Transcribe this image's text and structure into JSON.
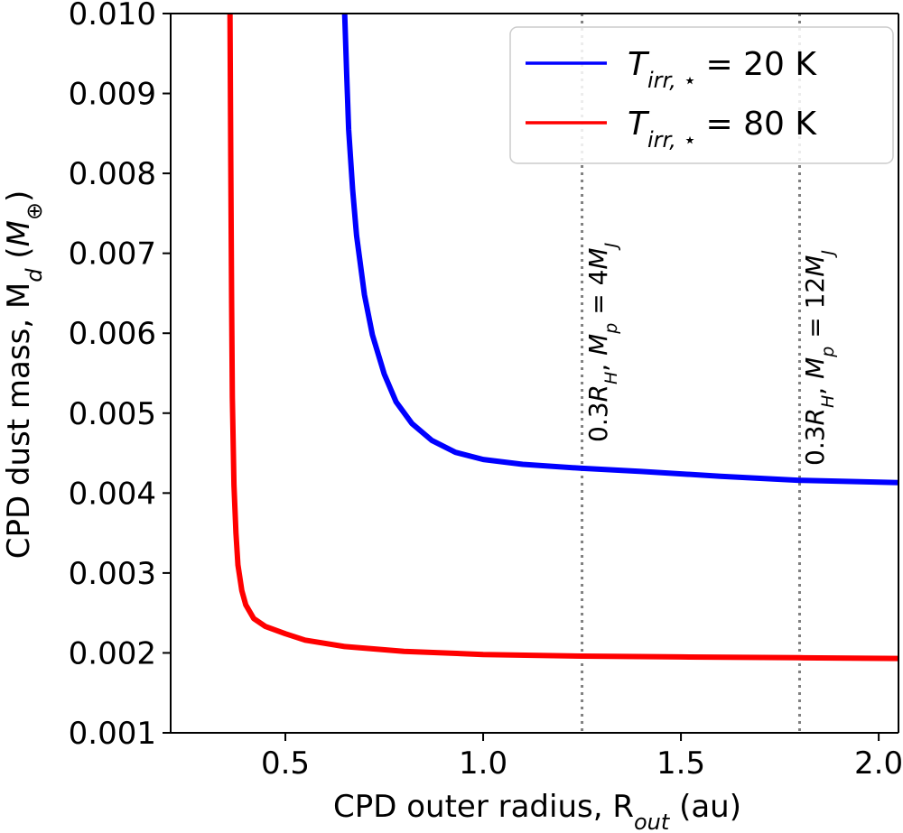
{
  "chart_data": {
    "type": "line",
    "xlabel": "CPD outer radius, R",
    "xlabel_sub": "out",
    "xlabel_unit": " (au)",
    "ylabel": "CPD dust mass, M",
    "ylabel_sub": "d",
    "ylabel_unit_open": " (",
    "ylabel_unit_M": "M",
    "ylabel_unit_sub": "⊕",
    "ylabel_unit_close": ")",
    "xlim": [
      0.21,
      2.05
    ],
    "ylim": [
      0.001,
      0.01
    ],
    "xticks": [
      {
        "value": 0.5,
        "label": "0.5"
      },
      {
        "value": 1.0,
        "label": "1.0"
      },
      {
        "value": 1.5,
        "label": "1.5"
      },
      {
        "value": 2.0,
        "label": "2.0"
      }
    ],
    "yticks": [
      {
        "value": 0.001,
        "label": "0.001"
      },
      {
        "value": 0.002,
        "label": "0.002"
      },
      {
        "value": 0.003,
        "label": "0.003"
      },
      {
        "value": 0.004,
        "label": "0.004"
      },
      {
        "value": 0.005,
        "label": "0.005"
      },
      {
        "value": 0.006,
        "label": "0.006"
      },
      {
        "value": 0.007,
        "label": "0.007"
      },
      {
        "value": 0.008,
        "label": "0.008"
      },
      {
        "value": 0.009,
        "label": "0.009"
      },
      {
        "value": 0.01,
        "label": "0.010"
      }
    ],
    "series": [
      {
        "name": "T_irr,★ = 20 K",
        "legend_T": "T",
        "legend_sub": "irr, ⋆",
        "legend_rest": "= 20 K",
        "color": "#0000ff",
        "x": [
          0.65,
          0.655,
          0.66,
          0.67,
          0.68,
          0.7,
          0.72,
          0.75,
          0.78,
          0.82,
          0.87,
          0.93,
          1.0,
          1.1,
          1.25,
          1.4,
          1.6,
          1.8,
          2.05
        ],
        "y": [
          0.01,
          0.00925,
          0.00855,
          0.0078,
          0.00722,
          0.00648,
          0.00598,
          0.00549,
          0.00514,
          0.00487,
          0.00466,
          0.00451,
          0.00442,
          0.00436,
          0.00431,
          0.00427,
          0.00421,
          0.00416,
          0.00413
        ]
      },
      {
        "name": "T_irr,★ = 80 K",
        "legend_T": "T",
        "legend_sub": "irr, ⋆",
        "legend_rest": "= 80 K",
        "color": "#ff0000",
        "x": [
          0.36,
          0.362,
          0.364,
          0.366,
          0.37,
          0.375,
          0.38,
          0.39,
          0.4,
          0.42,
          0.45,
          0.5,
          0.55,
          0.65,
          0.8,
          1.0,
          1.25,
          1.5,
          1.8,
          2.05
        ],
        "y": [
          0.01,
          0.0081,
          0.0064,
          0.0052,
          0.0041,
          0.0035,
          0.0031,
          0.00278,
          0.0026,
          0.00243,
          0.00233,
          0.00224,
          0.00216,
          0.00208,
          0.00202,
          0.00198,
          0.00196,
          0.00195,
          0.00194,
          0.00193
        ]
      }
    ],
    "vlines": [
      {
        "x": 1.25,
        "label": "0.3R_H, M_p = 4M_J",
        "lbl_a": "0.3",
        "lbl_R": "R",
        "lbl_Rsub": "H",
        "lbl_b": ", ",
        "lbl_M": "M",
        "lbl_Msub": "p",
        "lbl_c": " = 4",
        "lbl_MJ": "M",
        "lbl_MJsub": "J",
        "color": "#808080"
      },
      {
        "x": 1.8,
        "label": "0.3R_H, M_p = 12M_J",
        "lbl_a": "0.3",
        "lbl_R": "R",
        "lbl_Rsub": "H",
        "lbl_b": ", ",
        "lbl_M": "M",
        "lbl_Msub": "p",
        "lbl_c": " = 12",
        "lbl_MJ": "M",
        "lbl_MJsub": "J",
        "color": "#808080"
      }
    ],
    "legend_position": "top-right",
    "grid": false
  }
}
